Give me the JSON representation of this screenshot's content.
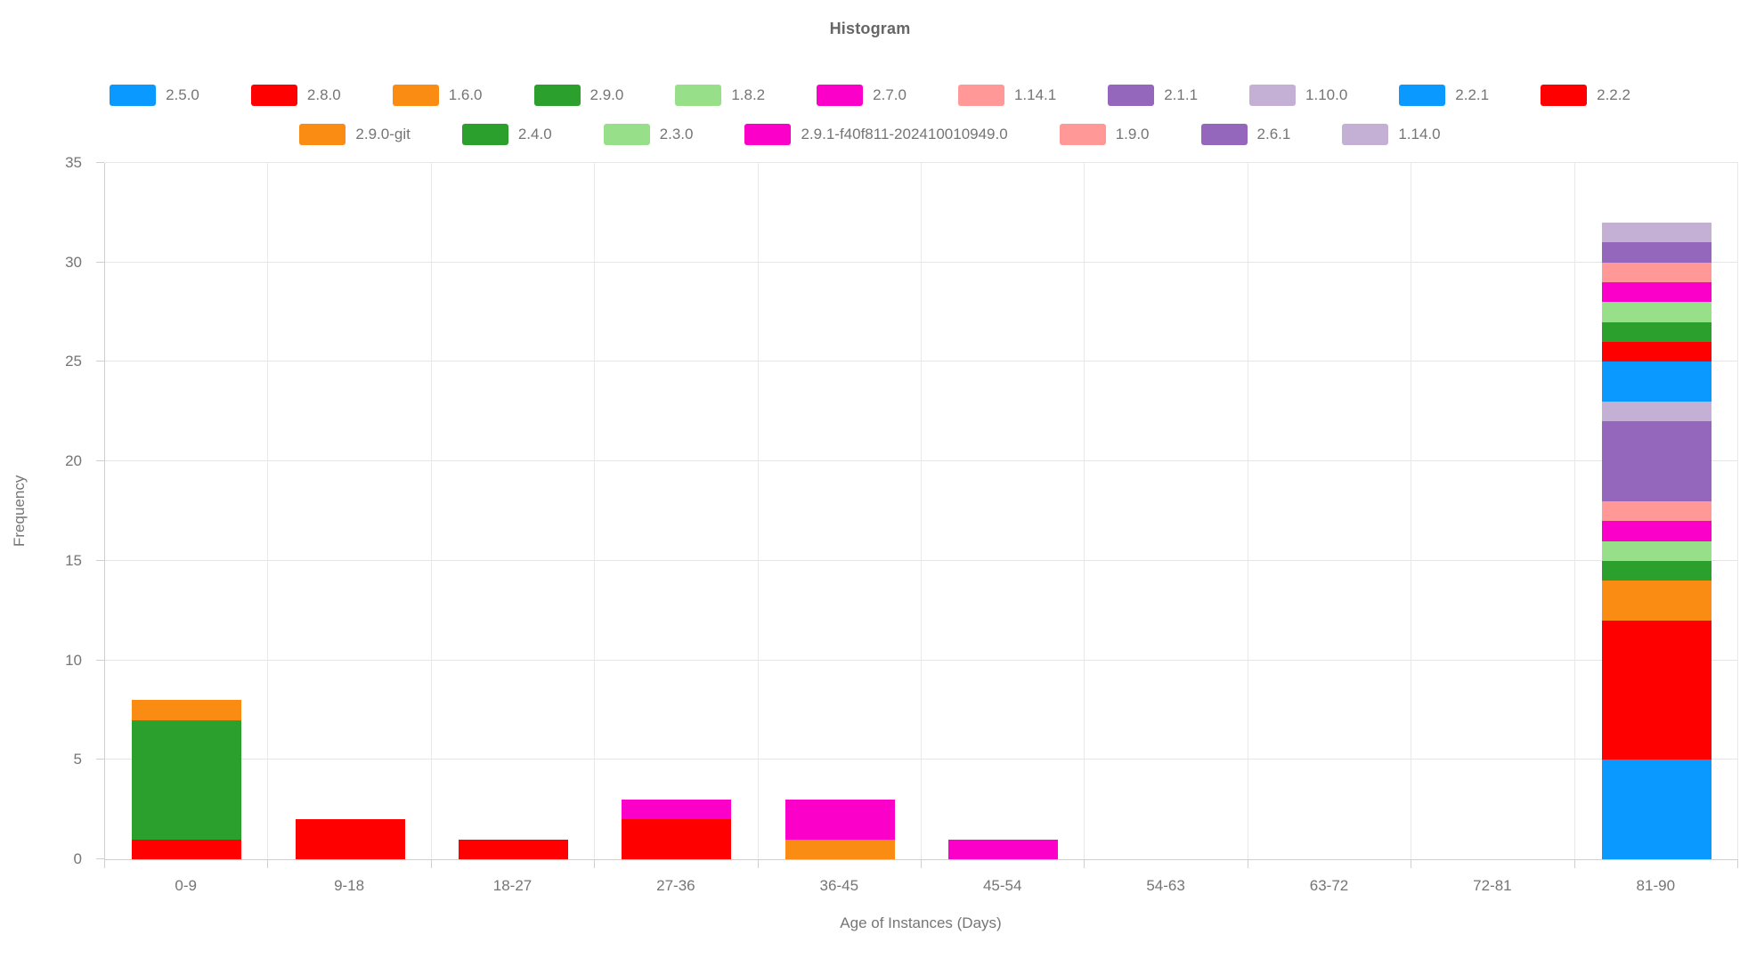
{
  "chart_data": {
    "type": "bar",
    "stacked": true,
    "title": "Histogram",
    "xlabel": "Age of Instances (Days)",
    "ylabel": "Frequency",
    "ylim": [
      0,
      35
    ],
    "yticks": [
      0,
      5,
      10,
      15,
      20,
      25,
      30,
      35
    ],
    "grid": true,
    "legend_position": "top",
    "categories": [
      "0-9",
      "9-18",
      "18-27",
      "27-36",
      "36-45",
      "45-54",
      "54-63",
      "63-72",
      "72-81",
      "81-90"
    ],
    "series": [
      {
        "name": "2.5.0",
        "color": "#0A99FF",
        "values": [
          0,
          0,
          0,
          0,
          0,
          0,
          0,
          0,
          0,
          5
        ]
      },
      {
        "name": "2.8.0",
        "color": "#FF0000",
        "values": [
          1,
          2,
          1,
          2,
          0,
          0,
          0,
          0,
          0,
          7
        ]
      },
      {
        "name": "1.6.0",
        "color": "#FB8C13",
        "values": [
          0,
          0,
          0,
          0,
          1,
          0,
          0,
          0,
          0,
          2
        ]
      },
      {
        "name": "2.9.0",
        "color": "#2CA02C",
        "values": [
          6,
          0,
          0,
          0,
          0,
          0,
          0,
          0,
          0,
          1
        ]
      },
      {
        "name": "1.8.2",
        "color": "#98DF8A",
        "values": [
          0,
          0,
          0,
          0,
          0,
          0,
          0,
          0,
          0,
          1
        ]
      },
      {
        "name": "2.7.0",
        "color": "#FA00C8",
        "values": [
          0,
          0,
          0,
          1,
          2,
          1,
          0,
          0,
          0,
          1
        ]
      },
      {
        "name": "1.14.1",
        "color": "#FF9896",
        "values": [
          0,
          0,
          0,
          0,
          0,
          0,
          0,
          0,
          0,
          1
        ]
      },
      {
        "name": "2.1.1",
        "color": "#9467BD",
        "values": [
          0,
          0,
          0,
          0,
          0,
          0,
          0,
          0,
          0,
          4
        ]
      },
      {
        "name": "1.10.0",
        "color": "#C5B0D5",
        "values": [
          0,
          0,
          0,
          0,
          0,
          0,
          0,
          0,
          0,
          1
        ]
      },
      {
        "name": "2.2.1",
        "color": "#0A99FF",
        "values": [
          0,
          0,
          0,
          0,
          0,
          0,
          0,
          0,
          0,
          2
        ]
      },
      {
        "name": "2.2.2",
        "color": "#FF0000",
        "values": [
          0,
          0,
          0,
          0,
          0,
          0,
          0,
          0,
          0,
          1
        ]
      },
      {
        "name": "2.9.0-git",
        "color": "#FB8C13",
        "values": [
          1,
          0,
          0,
          0,
          0,
          0,
          0,
          0,
          0,
          0
        ]
      },
      {
        "name": "2.4.0",
        "color": "#2CA02C",
        "values": [
          0,
          0,
          0,
          0,
          0,
          0,
          0,
          0,
          0,
          1
        ]
      },
      {
        "name": "2.3.0",
        "color": "#98DF8A",
        "values": [
          0,
          0,
          0,
          0,
          0,
          0,
          0,
          0,
          0,
          1
        ]
      },
      {
        "name": "2.9.1-f40f811-202410010949.0",
        "color": "#FA00C8",
        "values": [
          0,
          0,
          0,
          0,
          0,
          0,
          0,
          0,
          0,
          1
        ]
      },
      {
        "name": "1.9.0",
        "color": "#FF9896",
        "values": [
          0,
          0,
          0,
          0,
          0,
          0,
          0,
          0,
          0,
          1
        ]
      },
      {
        "name": "2.6.1",
        "color": "#9467BD",
        "values": [
          0,
          0,
          0,
          0,
          0,
          0,
          0,
          0,
          0,
          1
        ]
      },
      {
        "name": "1.14.0",
        "color": "#C5B0D5",
        "values": [
          0,
          0,
          0,
          0,
          0,
          0,
          0,
          0,
          0,
          1
        ]
      }
    ],
    "legend_rows": [
      [
        0,
        1,
        2,
        3,
        4,
        5,
        6,
        7,
        8,
        9,
        10
      ],
      [
        11,
        12,
        13,
        14,
        15,
        16,
        17
      ]
    ],
    "bar_totals": {
      "0-9": 8,
      "9-18": 2,
      "18-27": 1,
      "27-36": 3,
      "36-45": 3,
      "45-54": 1,
      "54-63": 0,
      "63-72": 0,
      "72-81": 0,
      "81-90": 32
    }
  }
}
